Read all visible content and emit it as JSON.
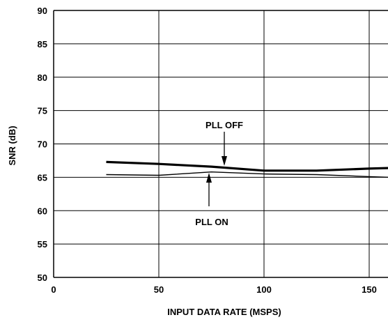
{
  "chart_data": {
    "type": "line",
    "xlabel": "INPUT DATA RATE (MSPS)",
    "ylabel": "SNR (dB)",
    "xlim": [
      0,
      160
    ],
    "ylim": [
      50,
      90
    ],
    "xticks": [
      0,
      50,
      100,
      150
    ],
    "yticks": [
      50,
      55,
      60,
      65,
      70,
      75,
      80,
      85,
      90
    ],
    "grid": true,
    "series": [
      {
        "name": "PLL OFF",
        "x": [
          25,
          50,
          75,
          100,
          125,
          150,
          160
        ],
        "y": [
          67.3,
          67.0,
          66.6,
          66.0,
          66.0,
          66.3,
          66.4
        ]
      },
      {
        "name": "PLL ON",
        "x": [
          25,
          50,
          75,
          100,
          125,
          150,
          160
        ],
        "y": [
          65.4,
          65.3,
          65.8,
          65.5,
          65.4,
          65.1,
          65.0
        ]
      }
    ],
    "annotations": [
      {
        "text": "PLL OFF",
        "points_to_series": "PLL OFF",
        "at_x": 80
      },
      {
        "text": "PLL ON",
        "points_to_series": "PLL ON",
        "at_x": 72
      }
    ]
  }
}
